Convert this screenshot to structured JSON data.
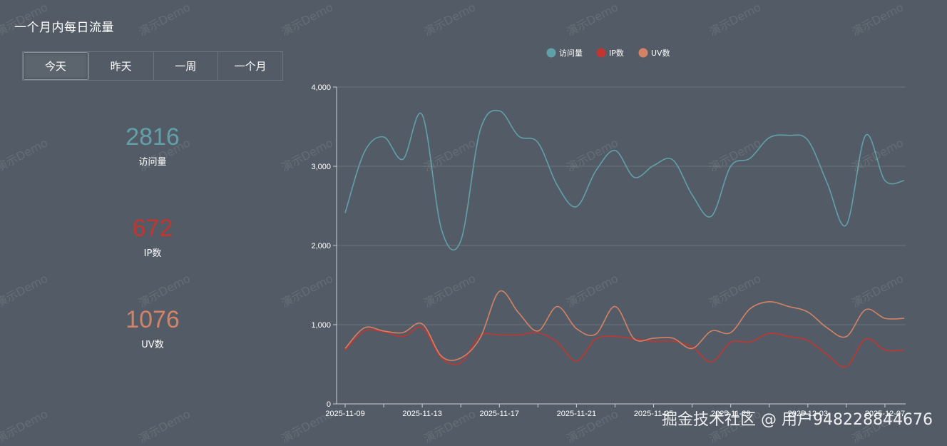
{
  "title": "一个月内每日流量",
  "tabs": [
    "今天",
    "昨天",
    "一周",
    "一个月"
  ],
  "active_tab": 0,
  "stats": [
    {
      "value": "2816",
      "label": "访问量",
      "color": "#61a0a8"
    },
    {
      "value": "672",
      "label": "IP数",
      "color": "#c23531"
    },
    {
      "value": "1076",
      "label": "UV数",
      "color": "#d48265"
    }
  ],
  "watermark_text": "演示Demo",
  "footer_watermark": "掘金技术社区 @ 用户948228844676",
  "chart_data": {
    "type": "line",
    "smooth": true,
    "legend": [
      "访问量",
      "IP数",
      "UV数"
    ],
    "legend_position": "top-center",
    "ylim": [
      0,
      4000
    ],
    "yticks": [
      "0",
      "1,000",
      "2,000",
      "3,000",
      "4,000"
    ],
    "x_tick_labels": [
      "2025-11-09",
      "2025-11-13",
      "2025-11-17",
      "2025-11-21",
      "2025-11-25",
      "2025-11-29",
      "2025-12-03",
      "2025-12-07"
    ],
    "x": [
      "2025-11-09",
      "2025-11-10",
      "2025-11-11",
      "2025-11-12",
      "2025-11-13",
      "2025-11-14",
      "2025-11-15",
      "2025-11-16",
      "2025-11-17",
      "2025-11-18",
      "2025-11-19",
      "2025-11-20",
      "2025-11-21",
      "2025-11-22",
      "2025-11-23",
      "2025-11-24",
      "2025-11-25",
      "2025-11-26",
      "2025-11-27",
      "2025-11-28",
      "2025-11-29",
      "2025-11-30",
      "2025-12-01",
      "2025-12-02",
      "2025-12-03",
      "2025-12-04",
      "2025-12-05",
      "2025-12-06",
      "2025-12-07",
      "2025-12-08"
    ],
    "series": [
      {
        "name": "访问量",
        "color": "#61a0a8",
        "values": [
          2410,
          3180,
          3370,
          3090,
          3650,
          2200,
          2060,
          3450,
          3700,
          3380,
          3300,
          2760,
          2490,
          2940,
          3200,
          2860,
          3010,
          3080,
          2640,
          2370,
          3000,
          3100,
          3360,
          3390,
          3330,
          2790,
          2260,
          3390,
          2820,
          2820
        ]
      },
      {
        "name": "IP数",
        "color": "#c23531",
        "values": [
          680,
          920,
          910,
          850,
          960,
          580,
          520,
          860,
          870,
          870,
          900,
          780,
          540,
          820,
          850,
          820,
          790,
          790,
          720,
          530,
          780,
          780,
          890,
          850,
          800,
          620,
          470,
          820,
          680,
          680
        ]
      },
      {
        "name": "UV数",
        "color": "#d48265",
        "values": [
          700,
          960,
          920,
          900,
          1010,
          600,
          580,
          830,
          1420,
          1150,
          920,
          1230,
          950,
          880,
          1230,
          820,
          830,
          830,
          700,
          920,
          900,
          1200,
          1290,
          1230,
          1160,
          960,
          850,
          1190,
          1080,
          1080
        ]
      }
    ]
  }
}
